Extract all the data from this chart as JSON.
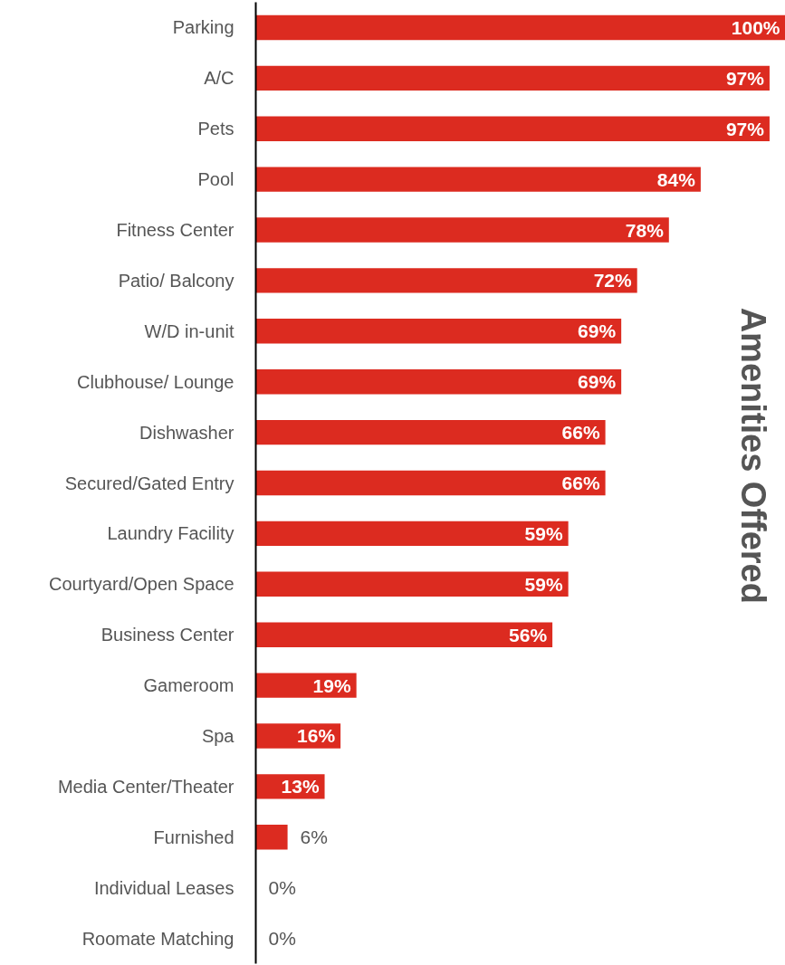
{
  "chart_data": {
    "type": "bar",
    "orientation": "horizontal",
    "title": "Amenities Offered",
    "categories": [
      "Parking",
      "A/C",
      "Pets",
      "Pool",
      "Fitness Center",
      "Patio/ Balcony",
      "W/D in-unit",
      "Clubhouse/ Lounge",
      "Dishwasher",
      "Secured/Gated Entry",
      "Laundry Facility",
      "Courtyard/Open Space",
      "Business Center",
      "Gameroom",
      "Spa",
      "Media Center/Theater",
      "Furnished",
      "Individual Leases",
      "Roomate Matching"
    ],
    "values": [
      100,
      97,
      97,
      84,
      78,
      72,
      69,
      69,
      66,
      66,
      59,
      59,
      56,
      19,
      16,
      13,
      6,
      0,
      0
    ],
    "value_labels": [
      "100%",
      "97%",
      "97%",
      "84%",
      "78%",
      "72%",
      "69%",
      "69%",
      "66%",
      "66%",
      "59%",
      "59%",
      "56%",
      "19%",
      "16%",
      "13%",
      "6%",
      "0%",
      "0%"
    ],
    "color": "#dc2b20",
    "xlim": [
      0,
      100
    ],
    "grid": false
  }
}
